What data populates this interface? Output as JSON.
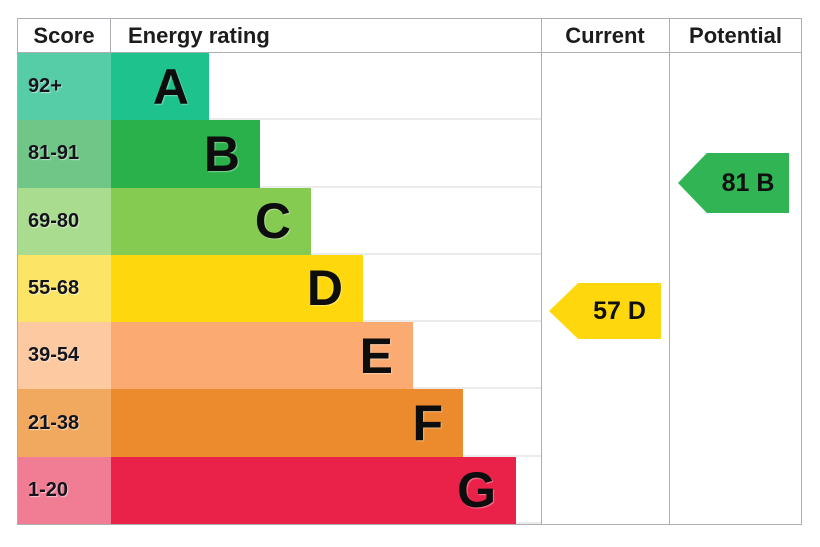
{
  "header": {
    "score": "Score",
    "energy_rating": "Energy rating",
    "current": "Current",
    "potential": "Potential"
  },
  "chart_data": {
    "type": "bar",
    "title": "Energy efficiency rating chart (EPC)",
    "xlabel": "",
    "ylabel": "",
    "legend": false,
    "bands": [
      {
        "letter": "A",
        "score_range": "92+",
        "bar_color": "#1ec28c",
        "score_cell_color": "#56cda6"
      },
      {
        "letter": "B",
        "score_range": "81-91",
        "bar_color": "#2bb14c",
        "score_cell_color": "#6fc687"
      },
      {
        "letter": "C",
        "score_range": "69-80",
        "bar_color": "#85cb51",
        "score_cell_color": "#aadc90"
      },
      {
        "letter": "D",
        "score_range": "55-68",
        "bar_color": "#fed80c",
        "score_cell_color": "#fbe466"
      },
      {
        "letter": "E",
        "score_range": "39-54",
        "bar_color": "#fbab71",
        "score_cell_color": "#fcc9a0"
      },
      {
        "letter": "F",
        "score_range": "21-38",
        "bar_color": "#eb8b2d",
        "score_cell_color": "#f1a95f"
      },
      {
        "letter": "G",
        "score_range": "1-20",
        "bar_color": "#ea2149",
        "score_cell_color": "#f17d95"
      }
    ],
    "current": {
      "score": 57,
      "band": "D",
      "label": "57 D",
      "arrow_color": "#fed80c"
    },
    "potential": {
      "score": 81,
      "band": "B",
      "label": "81 B",
      "arrow_color": "#30b454"
    }
  }
}
